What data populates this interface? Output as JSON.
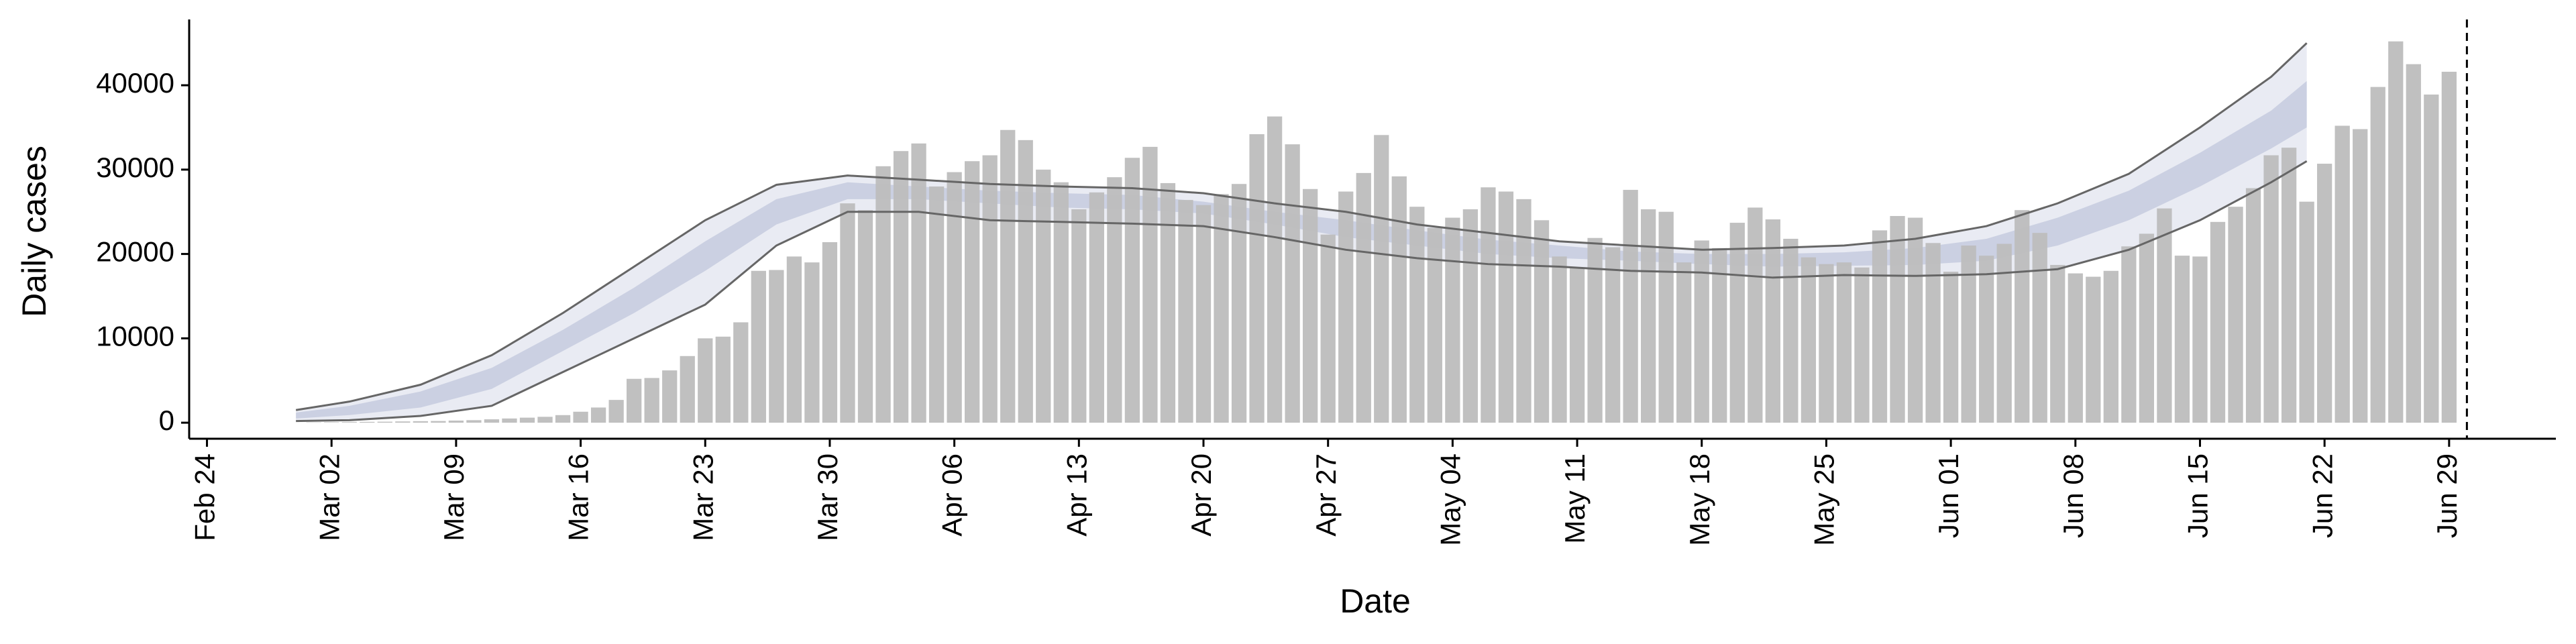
{
  "chart_data": {
    "type": "bar",
    "x_label": "Date",
    "y_label": "Daily cases",
    "xlim": [
      "Feb 23",
      "Jul 05"
    ],
    "ylim": [
      -1900,
      47800
    ],
    "xticks": [
      "Feb 24",
      "Mar 02",
      "Mar 09",
      "Mar 16",
      "Mar 23",
      "Mar 30",
      "Apr 06",
      "Apr 13",
      "Apr 20",
      "Apr 27",
      "May 04",
      "May 11",
      "May 18",
      "May 25",
      "Jun 01",
      "Jun 08",
      "Jun 15",
      "Jun 22",
      "Jun 29"
    ],
    "yticks": [
      0,
      10000,
      20000,
      30000,
      40000
    ],
    "color": "#bdbdbd",
    "vline": "Jun 30",
    "x": [
      "Mar 01",
      "Mar 02",
      "Mar 03",
      "Mar 04",
      "Mar 05",
      "Mar 06",
      "Mar 07",
      "Mar 08",
      "Mar 09",
      "Mar 10",
      "Mar 11",
      "Mar 12",
      "Mar 13",
      "Mar 14",
      "Mar 15",
      "Mar 16",
      "Mar 17",
      "Mar 18",
      "Mar 19",
      "Mar 20",
      "Mar 21",
      "Mar 22",
      "Mar 23",
      "Mar 24",
      "Mar 25",
      "Mar 26",
      "Mar 27",
      "Mar 28",
      "Mar 29",
      "Mar 30",
      "Mar 31",
      "Apr 01",
      "Apr 02",
      "Apr 03",
      "Apr 04",
      "Apr 05",
      "Apr 06",
      "Apr 07",
      "Apr 08",
      "Apr 09",
      "Apr 10",
      "Apr 11",
      "Apr 12",
      "Apr 13",
      "Apr 14",
      "Apr 15",
      "Apr 16",
      "Apr 17",
      "Apr 18",
      "Apr 19",
      "Apr 20",
      "Apr 21",
      "Apr 22",
      "Apr 23",
      "Apr 24",
      "Apr 25",
      "Apr 26",
      "Apr 27",
      "Apr 28",
      "Apr 29",
      "Apr 30",
      "May 01",
      "May 02",
      "May 03",
      "May 04",
      "May 05",
      "May 06",
      "May 07",
      "May 08",
      "May 09",
      "May 10",
      "May 11",
      "May 12",
      "May 13",
      "May 14",
      "May 15",
      "May 16",
      "May 17",
      "May 18",
      "May 19",
      "May 20",
      "May 21",
      "May 22",
      "May 23",
      "May 24",
      "May 25",
      "May 26",
      "May 27",
      "May 28",
      "May 29",
      "May 30",
      "May 31",
      "Jun 01",
      "Jun 02",
      "Jun 03",
      "Jun 04",
      "Jun 05",
      "Jun 06",
      "Jun 07",
      "Jun 08",
      "Jun 09",
      "Jun 10",
      "Jun 11",
      "Jun 12",
      "Jun 13",
      "Jun 14",
      "Jun 15",
      "Jun 16",
      "Jun 17",
      "Jun 18",
      "Jun 19",
      "Jun 20",
      "Jun 21",
      "Jun 22",
      "Jun 23",
      "Jun 24",
      "Jun 25",
      "Jun 26",
      "Jun 27",
      "Jun 28",
      "Jun 29"
    ],
    "values": [
      40,
      60,
      80,
      100,
      120,
      150,
      180,
      200,
      250,
      300,
      400,
      500,
      600,
      700,
      900,
      1300,
      1800,
      2700,
      5200,
      5300,
      6200,
      7900,
      10000,
      10200,
      11900,
      18000,
      18100,
      19700,
      19000,
      21400,
      26000,
      25200,
      30400,
      32200,
      33100,
      28000,
      29700,
      31000,
      31700,
      34700,
      33500,
      30000,
      28500,
      25300,
      27300,
      29100,
      31400,
      32700,
      28400,
      26400,
      25800,
      27100,
      28300,
      34200,
      36300,
      33000,
      27700,
      22300,
      27400,
      29600,
      34100,
      29200,
      25600,
      23100,
      24300,
      25300,
      27900,
      27400,
      26500,
      24000,
      19700,
      18400,
      21900,
      20800,
      27600,
      25300,
      25000,
      19000,
      21600,
      20700,
      23700,
      25500,
      24100,
      21800,
      19600,
      18800,
      19000,
      18400,
      22800,
      24500,
      24300,
      21300,
      17900,
      21000,
      19800,
      21200,
      25200,
      22500,
      18700,
      17700,
      17300,
      18000,
      20900,
      22400,
      25400,
      19800,
      19700,
      23800,
      25600,
      27800,
      31700,
      32600,
      26200,
      30700,
      35200,
      34800,
      39800,
      45200,
      42500,
      38900,
      41600
    ],
    "bands": [
      {
        "color": "#e9ebf3",
        "edge_color": "#666666",
        "x": [
          "Feb 29",
          "Mar 03",
          "Mar 07",
          "Mar 11",
          "Mar 15",
          "Mar 19",
          "Mar 23",
          "Mar 27",
          "Mar 31",
          "Apr 04",
          "Apr 08",
          "Apr 12",
          "Apr 16",
          "Apr 20",
          "Apr 24",
          "Apr 28",
          "May 02",
          "May 06",
          "May 10",
          "May 14",
          "May 18",
          "May 22",
          "May 26",
          "May 30",
          "Jun 03",
          "Jun 07",
          "Jun 11",
          "Jun 15",
          "Jun 19",
          "Jun 21"
        ],
        "upper": [
          1500,
          2500,
          4500,
          8000,
          13000,
          18500,
          24000,
          28200,
          29300,
          28800,
          28300,
          28000,
          27800,
          27200,
          26000,
          25000,
          23500,
          22500,
          21500,
          21000,
          20500,
          20700,
          21000,
          21800,
          23300,
          26000,
          29500,
          35000,
          41000,
          45000
        ],
        "lower": [
          200,
          300,
          800,
          2000,
          6000,
          10000,
          14000,
          21000,
          25000,
          25000,
          24000,
          23800,
          23600,
          23300,
          22000,
          20500,
          19500,
          18800,
          18500,
          18000,
          17800,
          17200,
          17500,
          17400,
          17600,
          18200,
          20500,
          24000,
          28500,
          31000
        ]
      },
      {
        "color": "#c5cbde",
        "x": [
          "Feb 29",
          "Mar 03",
          "Mar 07",
          "Mar 11",
          "Mar 15",
          "Mar 19",
          "Mar 23",
          "Mar 27",
          "Mar 31",
          "Apr 04",
          "Apr 08",
          "Apr 12",
          "Apr 16",
          "Apr 20",
          "Apr 24",
          "Apr 28",
          "May 02",
          "May 06",
          "May 10",
          "May 14",
          "May 18",
          "May 22",
          "May 26",
          "May 30",
          "Jun 03",
          "Jun 07",
          "Jun 11",
          "Jun 15",
          "Jun 19",
          "Jun 21"
        ],
        "upper": [
          1200,
          2000,
          3700,
          6500,
          11000,
          16000,
          21500,
          26500,
          28500,
          28000,
          27500,
          27200,
          27000,
          26200,
          25000,
          24000,
          22800,
          21700,
          21000,
          20300,
          20000,
          20000,
          20200,
          20700,
          21800,
          24300,
          27500,
          32000,
          37000,
          40500
        ],
        "lower": [
          500,
          900,
          1800,
          4000,
          8500,
          13000,
          18000,
          23500,
          26500,
          26500,
          26000,
          25500,
          25300,
          24800,
          23500,
          22000,
          21000,
          20000,
          19500,
          19200,
          18800,
          18500,
          18600,
          18700,
          19200,
          21000,
          24000,
          28000,
          32500,
          35000
        ]
      }
    ]
  }
}
